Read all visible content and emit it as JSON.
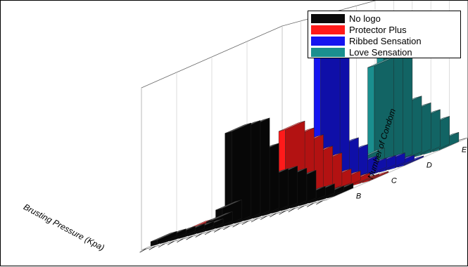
{
  "chart_data": {
    "type": "bar",
    "subtype": "3d-bar",
    "title": "",
    "xlabel": "Brusting Pressure (Kpa)",
    "ylabel": "",
    "zlabel": "Number of Condom",
    "zlim": [
      0,
      35
    ],
    "z_ticks": [
      "0",
      "5",
      "10",
      "15",
      "20",
      "25",
      "30",
      "35"
    ],
    "depth_categories": [
      "B",
      "C",
      "D",
      "E"
    ],
    "legend_position": "top-right",
    "series": [
      {
        "name": "No logo",
        "color": "#0a0a0a",
        "values": [
          1,
          1,
          1,
          1,
          1,
          1,
          2,
          4,
          20,
          20,
          20,
          14,
          8,
          8,
          7,
          6,
          2,
          2,
          1,
          1
        ]
      },
      {
        "name": "Protector Plus",
        "color": "#ff1a1a",
        "values": [
          0,
          0,
          0,
          0,
          0,
          0,
          0,
          0,
          2,
          3,
          16,
          14,
          12,
          9,
          7,
          3,
          2,
          1,
          0,
          0
        ]
      },
      {
        "name": "Ribbed Sensation",
        "color": "#1515f0",
        "values": [
          0,
          0,
          0,
          0,
          0,
          0,
          0,
          0,
          0,
          0,
          36,
          33,
          8,
          6,
          3,
          2,
          2,
          2,
          1,
          0
        ]
      },
      {
        "name": "Love Sensation",
        "color": "#1a8f8f",
        "values": [
          0,
          0,
          0,
          0,
          0,
          0,
          0,
          0,
          0,
          0,
          0,
          3,
          22,
          25,
          22,
          12,
          10,
          8,
          6,
          2
        ]
      }
    ]
  }
}
